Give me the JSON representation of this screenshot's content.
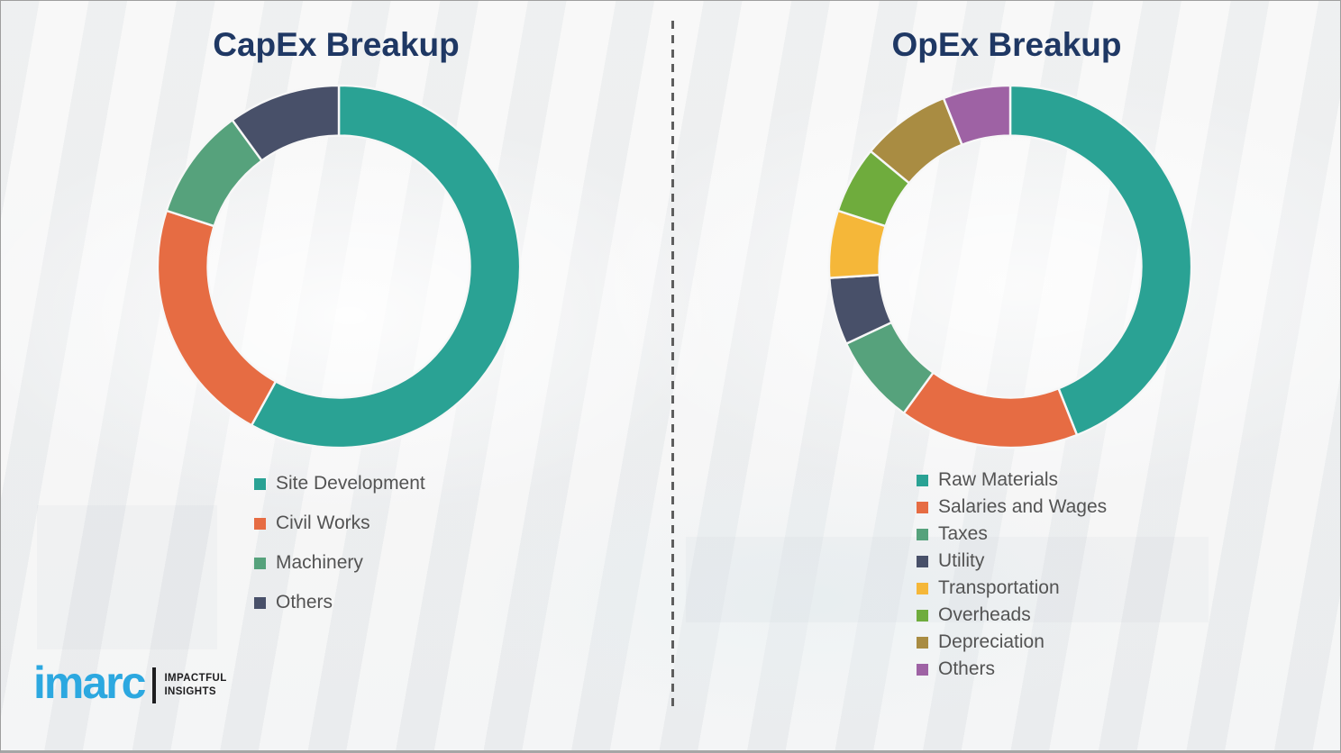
{
  "chart_data": [
    {
      "type": "pie",
      "subtype": "donut",
      "title": "CapEx Breakup",
      "categories": [
        "Site Development",
        "Civil Works",
        "Machinery",
        "Others"
      ],
      "values": [
        58,
        22,
        10,
        10
      ],
      "values_unit": "percent (estimated from arc angles; no data labels shown)",
      "colors": [
        "#2AA294",
        "#E66C43",
        "#56A27C",
        "#485069"
      ],
      "start_angle": "top",
      "direction": "clockwise",
      "legend_position": "below-left",
      "title_color": "#1F3864"
    },
    {
      "type": "pie",
      "subtype": "donut",
      "title": "OpEx Breakup",
      "categories": [
        "Raw Materials",
        "Salaries and Wages",
        "Taxes",
        "Utility",
        "Transportation",
        "Overheads",
        "Depreciation",
        "Others"
      ],
      "values": [
        44,
        16,
        8,
        6,
        6,
        6,
        8,
        6
      ],
      "values_unit": "percent (estimated from arc angles; no data labels shown)",
      "colors": [
        "#2AA294",
        "#E66C43",
        "#56A27C",
        "#485069",
        "#F5B739",
        "#6FAC3D",
        "#A98C42",
        "#9E62A4"
      ],
      "start_angle": "top",
      "direction": "clockwise",
      "legend_position": "below-left",
      "title_color": "#1F3864"
    }
  ],
  "branding": {
    "logo_text": "imarc",
    "tagline_line1": "IMPACTFUL",
    "tagline_line2": "INSIGHTS",
    "logo_color": "#2CA8E0"
  },
  "style": {
    "background": "#f2f2f2",
    "legend_text_color": "#535353",
    "divider_color": "#5e5e5e",
    "slice_gap_color": "#f7f7f7"
  }
}
